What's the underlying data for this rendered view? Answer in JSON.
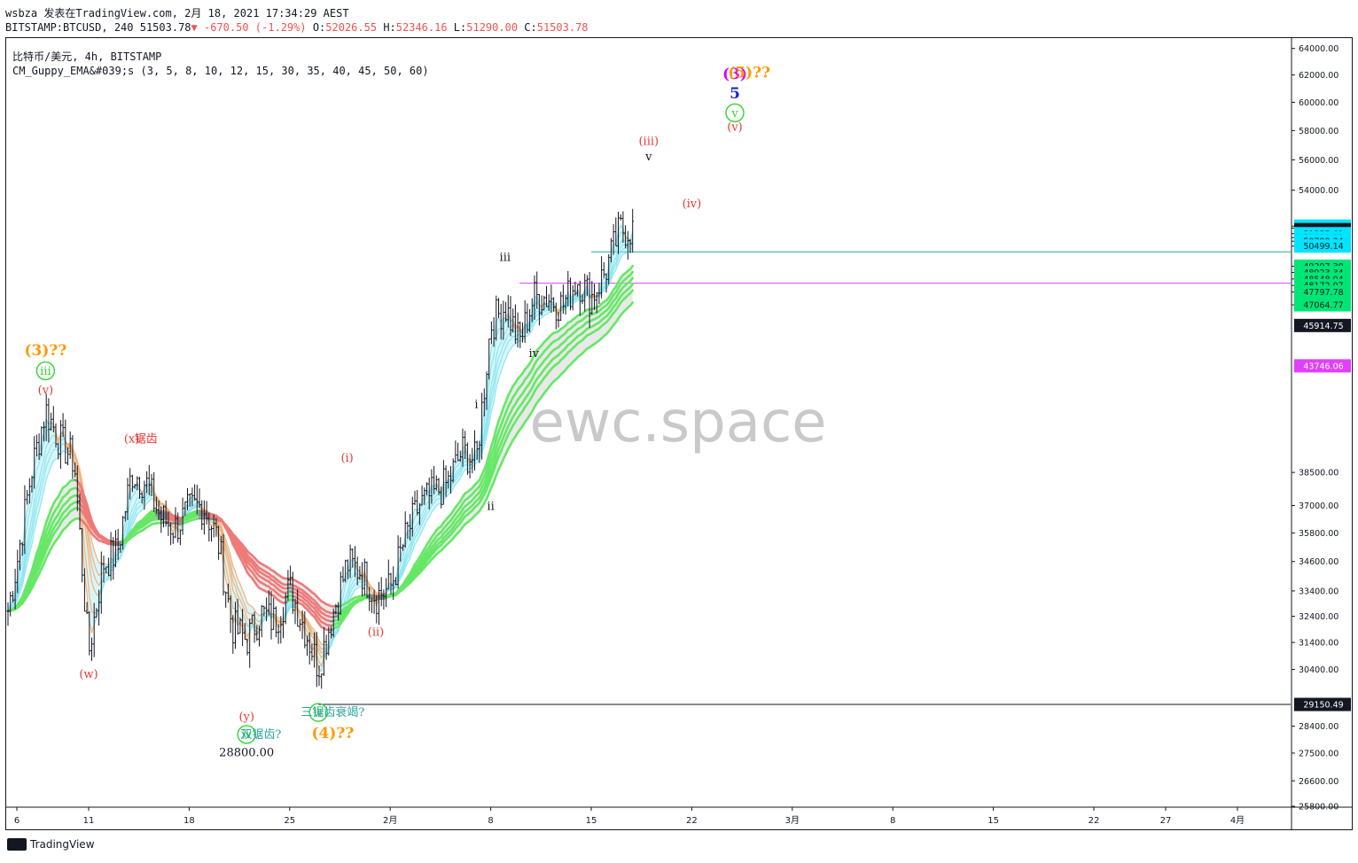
{
  "header": {
    "line1": "wsbza 发表在TradingView.com, 2月 18, 2021 17:34:29 AEST",
    "symbol": "BITSTAMP:BTCUSD, 240",
    "price": "51503.78",
    "change": "-670.50 (-1.29%)",
    "o_label": "O:",
    "o_val": "52026.55",
    "h_label": "H:",
    "h_val": "52346.16",
    "l_label": "L:",
    "l_val": "51290.00",
    "c_label": "C:",
    "c_val": "51503.78"
  },
  "legend": {
    "line1": "比特币/美元, 4h, BITSTAMP",
    "line2": "CM_Guppy_EMA&#039;s (3, 5, 8, 10, 12, 15, 30, 35, 40, 45, 50, 60)"
  },
  "watermark": "ewc.space",
  "footer": {
    "brand": "TradingView"
  },
  "colors": {
    "candle": "#131722",
    "fast_ema_up": "#8ee6f0",
    "slow_ema_up": "#66e866",
    "ema_down": "#ef7a7a",
    "ema_neutral": "#8a8a8a",
    "cyan_line": "#26a69a",
    "magenta_line": "#e040fb",
    "wave_red": "#e53935",
    "wave_green": "#2fd52f",
    "wave_orange": "#ff9800",
    "wave_magenta": "#d500f9",
    "wave_blue": "#1e22e0",
    "wave_black": "#131722"
  },
  "chart_data": {
    "type": "candlestick",
    "title": "",
    "ylim": [
      25800,
      64800
    ],
    "y_scale": "log",
    "x_ticks": [
      "6",
      "11",
      "18",
      "25",
      "2月",
      "8",
      "15",
      "22",
      "3月",
      "8",
      "15",
      "22",
      "27",
      "4月"
    ],
    "y_ticks": [
      "64000.00",
      "62000.00",
      "60000.00",
      "58000.00",
      "56000.00",
      "54000.00",
      "51725.09",
      "51601.44",
      "51255.61",
      "51019.21",
      "50798.34",
      "50499.14",
      "49297.30",
      "48923.34",
      "48548.04",
      "48172.07",
      "47797.78",
      "47064.77",
      "38500.00",
      "37000.00",
      "35800.00",
      "34600.00",
      "33400.00",
      "32400.00",
      "31400.00",
      "30400.00",
      "28400.00",
      "27500.00",
      "26600.00",
      "25800.00"
    ],
    "y_tick_values": [
      64000,
      62000,
      60000,
      58000,
      56000,
      54000,
      51725.09,
      51601.44,
      51255.61,
      51019.21,
      50798.34,
      50499.14,
      49297.3,
      48923.34,
      48548.04,
      48172.07,
      47797.78,
      47064.77,
      38500,
      37000,
      35800,
      34600,
      33400,
      32400,
      31400,
      30400,
      28400,
      27500,
      26600,
      25800
    ],
    "price_labels": [
      {
        "text": "51725.09",
        "value": 51725.09,
        "bg": "#00e5ff",
        "fg": "#131722"
      },
      {
        "text": "51601.44",
        "value": 51601.44,
        "bg": "#00e5ff",
        "fg": "#131722"
      },
      {
        "text": "51503.78",
        "value": 51503.78,
        "bg": "#131722",
        "fg": "#ffffff"
      },
      {
        "text": "25:33",
        "value": 51380,
        "bg": "#131722",
        "fg": "#ffffff"
      },
      {
        "text": "51255.61",
        "value": 51255.61,
        "bg": "#00e5ff",
        "fg": "#131722"
      },
      {
        "text": "51019.21",
        "value": 51019.21,
        "bg": "#00e5ff",
        "fg": "#131722"
      },
      {
        "text": "50798.34",
        "value": 50798.34,
        "bg": "#00e5ff",
        "fg": "#131722"
      },
      {
        "text": "50499.14",
        "value": 50499.14,
        "bg": "#00e5ff",
        "fg": "#131722"
      },
      {
        "text": "49297.30",
        "value": 49297.3,
        "bg": "#00e676",
        "fg": "#131722"
      },
      {
        "text": "48923.34",
        "value": 48923.34,
        "bg": "#00e676",
        "fg": "#131722"
      },
      {
        "text": "48548.04",
        "value": 48548.04,
        "bg": "#00e676",
        "fg": "#131722"
      },
      {
        "text": "48172.07",
        "value": 48172.07,
        "bg": "#00e676",
        "fg": "#131722"
      },
      {
        "text": "47797.78",
        "value": 47797.78,
        "bg": "#00e676",
        "fg": "#131722"
      },
      {
        "text": "47064.77",
        "value": 47064.77,
        "bg": "#00e676",
        "fg": "#131722"
      },
      {
        "text": "45914.75",
        "value": 45914.75,
        "bg": "#131722",
        "fg": "#ffffff"
      },
      {
        "text": "43746.06",
        "value": 43746.06,
        "bg": "#e040fb",
        "fg": "#ffffff"
      },
      {
        "text": "29150.49",
        "value": 29150.49,
        "bg": "#131722",
        "fg": "#ffffff"
      }
    ],
    "horizontal_lines": [
      {
        "value": 50150,
        "color": "#26a69a",
        "from_x": "Feb 15"
      },
      {
        "value": 48300,
        "color": "#e040fb",
        "from_x": "Feb 10"
      },
      {
        "value": 29150.49,
        "color": "#131722",
        "from_x": "Jan 27"
      }
    ],
    "price_path": [
      {
        "t": "Jan 5",
        "v": 31500
      },
      {
        "t": "Jan 6",
        "v": 34500
      },
      {
        "t": "Jan 7",
        "v": 38500
      },
      {
        "t": "Jan 8",
        "v": 41500
      },
      {
        "t": "Jan 9",
        "v": 40000
      },
      {
        "t": "Jan 10",
        "v": 39000
      },
      {
        "t": "Jan 11",
        "v": 31000
      },
      {
        "t": "Jan 12",
        "v": 34500
      },
      {
        "t": "Jan 13",
        "v": 35000
      },
      {
        "t": "Jan 14",
        "v": 38500
      },
      {
        "t": "Jan 15",
        "v": 38000
      },
      {
        "t": "Jan 16",
        "v": 36500
      },
      {
        "t": "Jan 17",
        "v": 36000
      },
      {
        "t": "Jan 18",
        "v": 36800
      },
      {
        "t": "Jan 19",
        "v": 37000
      },
      {
        "t": "Jan 20",
        "v": 35500
      },
      {
        "t": "Jan 21",
        "v": 32000
      },
      {
        "t": "Jan 22",
        "v": 31500
      },
      {
        "t": "Jan 23",
        "v": 32500
      },
      {
        "t": "Jan 24",
        "v": 32200
      },
      {
        "t": "Jan 25",
        "v": 33500
      },
      {
        "t": "Jan 26",
        "v": 32000
      },
      {
        "t": "Jan 27",
        "v": 30500
      },
      {
        "t": "Jan 28",
        "v": 32500
      },
      {
        "t": "Jan 29",
        "v": 34500
      },
      {
        "t": "Jan 30",
        "v": 34200
      },
      {
        "t": "Jan 31",
        "v": 33200
      },
      {
        "t": "Feb 1",
        "v": 33500
      },
      {
        "t": "Feb 2",
        "v": 35500
      },
      {
        "t": "Feb 3",
        "v": 37000
      },
      {
        "t": "Feb 4",
        "v": 37500
      },
      {
        "t": "Feb 5",
        "v": 38000
      },
      {
        "t": "Feb 6",
        "v": 39500
      },
      {
        "t": "Feb 7",
        "v": 39000
      },
      {
        "t": "Feb 8",
        "v": 46000
      },
      {
        "t": "Feb 9",
        "v": 47000
      },
      {
        "t": "Feb 10",
        "v": 45000
      },
      {
        "t": "Feb 11",
        "v": 47500
      },
      {
        "t": "Feb 12",
        "v": 47500
      },
      {
        "t": "Feb 13",
        "v": 47000
      },
      {
        "t": "Feb 14",
        "v": 48500
      },
      {
        "t": "Feb 15",
        "v": 47500
      },
      {
        "t": "Feb 16",
        "v": 49000
      },
      {
        "t": "Feb 17",
        "v": 51500
      },
      {
        "t": "Feb 18",
        "v": 51503.78
      }
    ],
    "annotations": [
      {
        "text": "(3)??",
        "t": "Jan 8",
        "v": 44300,
        "color": "orange"
      },
      {
        "text": "iii",
        "t": "Jan 8",
        "v": 43300,
        "color": "green",
        "circled": true
      },
      {
        "text": "(v)",
        "t": "Jan 8",
        "v": 42300,
        "color": "red"
      },
      {
        "text": "(x)",
        "t": "Jan 14",
        "v": 39900,
        "color": "red"
      },
      {
        "text": "锯齿",
        "t": "Jan 15",
        "v": 39900,
        "color": "red"
      },
      {
        "text": "(w)",
        "t": "Jan 11",
        "v": 30100,
        "color": "red"
      },
      {
        "text": "(y)",
        "t": "Jan 22",
        "v": 28600,
        "color": "red"
      },
      {
        "text": "iv",
        "t": "Jan 22",
        "v": 28000,
        "color": "green",
        "circled": true
      },
      {
        "text": "双锯齿?",
        "t": "Jan 23",
        "v": 28000,
        "color": "teal"
      },
      {
        "text": "28800.00",
        "t": "Jan 22",
        "v": 27400,
        "color": "black"
      },
      {
        "text": "iv",
        "t": "Jan 27",
        "v": 28750,
        "color": "green",
        "circled": true
      },
      {
        "text": "三锯齿衰竭?",
        "t": "Jan 28",
        "v": 28750,
        "color": "teal"
      },
      {
        "text": "(4)??",
        "t": "Jan 28",
        "v": 28000,
        "color": "orange"
      },
      {
        "text": "(i)",
        "t": "Jan 29",
        "v": 39000,
        "color": "red"
      },
      {
        "text": "(ii)",
        "t": "Jan 31",
        "v": 31650,
        "color": "red"
      },
      {
        "text": "i",
        "t": "Feb 7",
        "v": 41600,
        "color": "black"
      },
      {
        "text": "ii",
        "t": "Feb 8",
        "v": 36800,
        "color": "black"
      },
      {
        "text": "iii",
        "t": "Feb 9",
        "v": 49600,
        "color": "black"
      },
      {
        "text": "iv",
        "t": "Feb 11",
        "v": 44200,
        "color": "black"
      },
      {
        "text": "(iii)",
        "t": "Feb 19",
        "v": 57000,
        "color": "red"
      },
      {
        "text": "v",
        "t": "Feb 19",
        "v": 55950,
        "color": "black"
      },
      {
        "text": "(iv)",
        "t": "Feb 22",
        "v": 52900,
        "color": "red"
      },
      {
        "text": "(3)",
        "t": "Feb 25",
        "v": 61700,
        "color": "magenta"
      },
      {
        "text": "(5)??",
        "t": "Feb 26",
        "v": 61800,
        "color": "orange"
      },
      {
        "text": "5",
        "t": "Feb 25",
        "v": 60300,
        "color": "blue"
      },
      {
        "text": "v",
        "t": "Feb 25",
        "v": 59000,
        "color": "green",
        "circled": true
      },
      {
        "text": "(v)",
        "t": "Feb 25",
        "v": 58000,
        "color": "red"
      }
    ]
  }
}
